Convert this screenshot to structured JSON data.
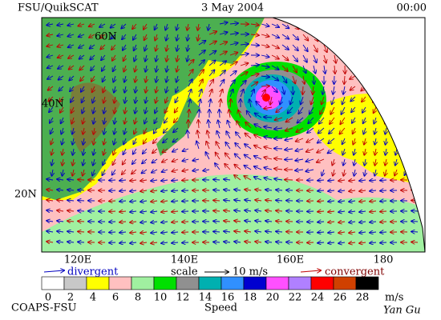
{
  "header": {
    "title": "FSU/QuikSCAT",
    "date": "3 May 2004",
    "time": "00:00"
  },
  "map": {
    "lat_labels": [
      "60N",
      "40N",
      "20N"
    ],
    "lon_labels": [
      "120E",
      "140E",
      "160E",
      "180"
    ]
  },
  "legend": {
    "divergent": "divergent",
    "scale": "scale",
    "scale_value": "10 m/s",
    "convergent": "convergent"
  },
  "colorbar": {
    "labels": [
      0,
      2,
      4,
      6,
      8,
      10,
      12,
      14,
      16,
      18,
      20,
      22,
      24,
      26,
      28
    ],
    "unit": "m/s",
    "title": "Speed",
    "colors": [
      "#ffffff",
      "#c8c8c8",
      "#ffff00",
      "#ffc0c0",
      "#a0f0a0",
      "#00e000",
      "#909090",
      "#00b0b0",
      "#3090ff",
      "#0000d0",
      "#ff50ff",
      "#b080ff",
      "#ff0000",
      "#d04000",
      "#000000"
    ]
  },
  "footer": {
    "left": "COAPS-FSU",
    "signature": "Yan Gu"
  }
}
